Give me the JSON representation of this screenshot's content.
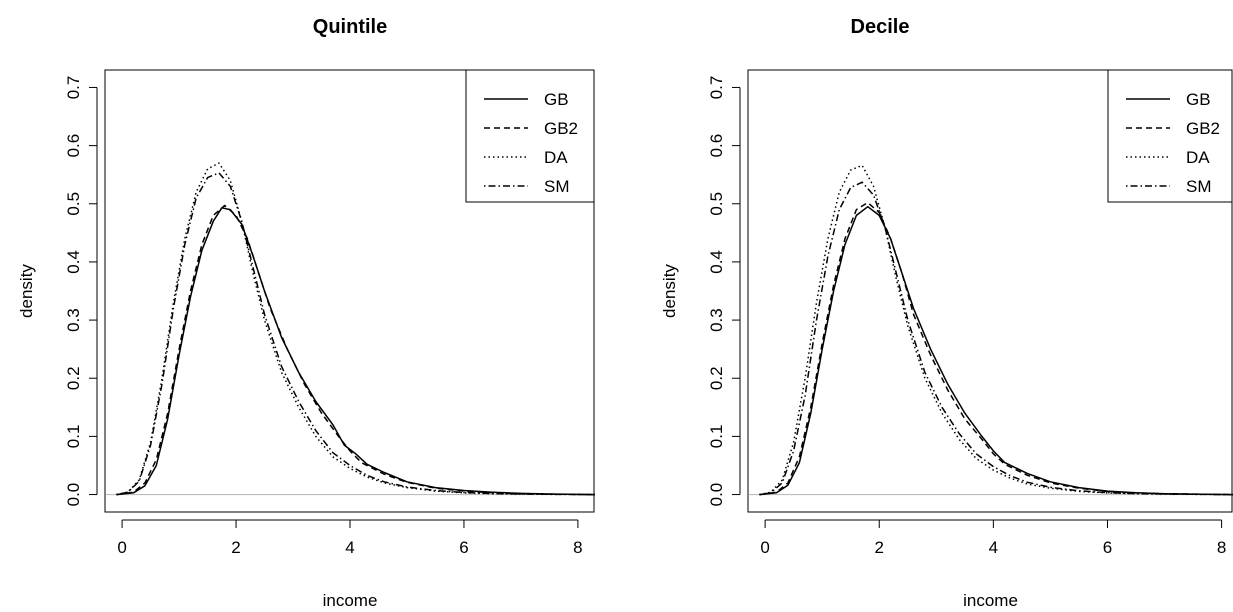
{
  "chart_data": [
    {
      "type": "line",
      "title": "Quintile",
      "xlabel": "income",
      "ylabel": "density",
      "xlim": [
        -0.3,
        8.3
      ],
      "ylim": [
        -0.03,
        0.73
      ],
      "xticks": [
        0,
        2,
        4,
        6,
        8
      ],
      "yticks": [
        0.0,
        0.1,
        0.2,
        0.3,
        0.4,
        0.5,
        0.6,
        0.7
      ],
      "ytick_labels": [
        "0.0",
        "0.1",
        "0.2",
        "0.3",
        "0.4",
        "0.5",
        "0.6",
        "0.7"
      ],
      "baseline": 0,
      "grid": false,
      "legend_position": "top-right",
      "series": [
        {
          "name": "GB",
          "dash": "solid",
          "x": [
            -0.1,
            0.2,
            0.4,
            0.6,
            0.8,
            1.0,
            1.2,
            1.4,
            1.6,
            1.75,
            1.9,
            2.1,
            2.3,
            2.5,
            2.8,
            3.1,
            3.4,
            3.7,
            3.9,
            4.1,
            4.3,
            4.6,
            5.0,
            5.5,
            6.0,
            6.5,
            7.0,
            7.5,
            8.3
          ],
          "y": [
            0.0,
            0.003,
            0.015,
            0.05,
            0.13,
            0.24,
            0.34,
            0.42,
            0.47,
            0.493,
            0.49,
            0.465,
            0.41,
            0.35,
            0.27,
            0.21,
            0.16,
            0.12,
            0.085,
            0.07,
            0.052,
            0.038,
            0.022,
            0.012,
            0.007,
            0.004,
            0.002,
            0.001,
            0.0
          ]
        },
        {
          "name": "GB2",
          "dash": "dashed",
          "x": [
            -0.1,
            0.2,
            0.4,
            0.6,
            0.8,
            1.0,
            1.2,
            1.4,
            1.6,
            1.8,
            2.0,
            2.2,
            2.4,
            2.6,
            2.9,
            3.2,
            3.5,
            3.8,
            4.0,
            4.2,
            4.6,
            5.0,
            5.5,
            6.0,
            6.5,
            7.0,
            7.5,
            8.3
          ],
          "y": [
            0.0,
            0.004,
            0.02,
            0.06,
            0.14,
            0.25,
            0.35,
            0.43,
            0.48,
            0.497,
            0.48,
            0.44,
            0.38,
            0.32,
            0.25,
            0.19,
            0.14,
            0.1,
            0.075,
            0.055,
            0.035,
            0.021,
            0.011,
            0.006,
            0.003,
            0.0015,
            0.0008,
            0.0
          ]
        },
        {
          "name": "DA",
          "dash": "dotted",
          "x": [
            -0.1,
            0.1,
            0.3,
            0.5,
            0.7,
            0.9,
            1.1,
            1.3,
            1.5,
            1.7,
            1.9,
            2.1,
            2.3,
            2.5,
            2.8,
            3.1,
            3.4,
            3.7,
            4.0,
            4.3,
            4.6,
            5.0,
            5.5,
            6.0,
            6.5,
            7.0,
            7.5,
            8.3
          ],
          "y": [
            0.0,
            0.004,
            0.025,
            0.09,
            0.2,
            0.33,
            0.44,
            0.52,
            0.56,
            0.57,
            0.54,
            0.47,
            0.38,
            0.3,
            0.21,
            0.15,
            0.1,
            0.065,
            0.045,
            0.03,
            0.02,
            0.012,
            0.006,
            0.003,
            0.0015,
            0.0008,
            0.0004,
            0.0
          ]
        },
        {
          "name": "SM",
          "dash": "dotdash",
          "x": [
            -0.1,
            0.1,
            0.3,
            0.5,
            0.7,
            0.9,
            1.1,
            1.3,
            1.5,
            1.7,
            1.9,
            2.1,
            2.3,
            2.5,
            2.8,
            3.1,
            3.4,
            3.7,
            4.0,
            4.3,
            4.6,
            5.0,
            5.5,
            6.0,
            6.5,
            7.0,
            7.5,
            8.3
          ],
          "y": [
            0.0,
            0.004,
            0.023,
            0.085,
            0.19,
            0.32,
            0.43,
            0.51,
            0.545,
            0.553,
            0.53,
            0.47,
            0.39,
            0.31,
            0.22,
            0.16,
            0.11,
            0.072,
            0.05,
            0.033,
            0.022,
            0.013,
            0.007,
            0.0035,
            0.0018,
            0.0009,
            0.0005,
            0.0
          ]
        }
      ]
    },
    {
      "type": "line",
      "title": "Decile",
      "xlabel": "income",
      "ylabel": "density",
      "xlim": [
        -0.3,
        8.2
      ],
      "ylim": [
        -0.03,
        0.73
      ],
      "xticks": [
        0,
        2,
        4,
        6,
        8
      ],
      "yticks": [
        0.0,
        0.1,
        0.2,
        0.3,
        0.4,
        0.5,
        0.6,
        0.7
      ],
      "ytick_labels": [
        "0.0",
        "0.1",
        "0.2",
        "0.3",
        "0.4",
        "0.5",
        "0.6",
        "0.7"
      ],
      "baseline": 0,
      "grid": false,
      "legend_position": "top-right",
      "series": [
        {
          "name": "GB",
          "dash": "solid",
          "x": [
            -0.1,
            0.2,
            0.4,
            0.6,
            0.8,
            1.0,
            1.2,
            1.4,
            1.6,
            1.8,
            2.0,
            2.2,
            2.4,
            2.6,
            2.9,
            3.2,
            3.5,
            3.8,
            4.0,
            4.2,
            4.6,
            5.0,
            5.5,
            6.0,
            6.5,
            7.0,
            7.5,
            8.2
          ],
          "y": [
            0.0,
            0.003,
            0.016,
            0.055,
            0.14,
            0.25,
            0.35,
            0.43,
            0.48,
            0.495,
            0.48,
            0.44,
            0.38,
            0.32,
            0.25,
            0.19,
            0.14,
            0.1,
            0.075,
            0.055,
            0.036,
            0.022,
            0.012,
            0.006,
            0.003,
            0.0015,
            0.0008,
            0.0
          ]
        },
        {
          "name": "GB2",
          "dash": "dashed",
          "x": [
            -0.1,
            0.2,
            0.4,
            0.6,
            0.8,
            1.0,
            1.2,
            1.4,
            1.6,
            1.8,
            2.0,
            2.2,
            2.4,
            2.6,
            2.9,
            3.2,
            3.5,
            3.8,
            4.0,
            4.2,
            4.6,
            5.0,
            5.5,
            6.0,
            6.5,
            7.0,
            7.5,
            8.2
          ],
          "y": [
            0.0,
            0.004,
            0.02,
            0.065,
            0.15,
            0.26,
            0.36,
            0.44,
            0.49,
            0.502,
            0.485,
            0.44,
            0.38,
            0.31,
            0.24,
            0.18,
            0.13,
            0.095,
            0.07,
            0.052,
            0.033,
            0.02,
            0.011,
            0.0055,
            0.0028,
            0.0014,
            0.0007,
            0.0
          ]
        },
        {
          "name": "DA",
          "dash": "dotted",
          "x": [
            -0.1,
            0.1,
            0.3,
            0.5,
            0.7,
            0.9,
            1.1,
            1.3,
            1.5,
            1.7,
            1.9,
            2.1,
            2.3,
            2.5,
            2.8,
            3.1,
            3.4,
            3.7,
            4.0,
            4.3,
            4.6,
            5.0,
            5.5,
            6.0,
            6.5,
            7.0,
            7.5,
            8.2
          ],
          "y": [
            0.0,
            0.004,
            0.025,
            0.09,
            0.2,
            0.33,
            0.44,
            0.52,
            0.558,
            0.566,
            0.53,
            0.46,
            0.37,
            0.29,
            0.2,
            0.14,
            0.095,
            0.062,
            0.042,
            0.028,
            0.018,
            0.011,
            0.0055,
            0.0028,
            0.0014,
            0.0007,
            0.0004,
            0.0
          ]
        },
        {
          "name": "SM",
          "dash": "dotdash",
          "x": [
            -0.1,
            0.1,
            0.3,
            0.5,
            0.7,
            0.9,
            1.1,
            1.3,
            1.5,
            1.7,
            1.9,
            2.1,
            2.3,
            2.5,
            2.8,
            3.1,
            3.4,
            3.7,
            4.0,
            4.3,
            4.6,
            5.0,
            5.5,
            6.0,
            6.5,
            7.0,
            7.5,
            8.2
          ],
          "y": [
            0.0,
            0.003,
            0.02,
            0.075,
            0.17,
            0.3,
            0.41,
            0.49,
            0.528,
            0.537,
            0.515,
            0.46,
            0.38,
            0.3,
            0.21,
            0.15,
            0.105,
            0.07,
            0.048,
            0.032,
            0.021,
            0.0125,
            0.0065,
            0.0033,
            0.0017,
            0.0009,
            0.0005,
            0.0
          ]
        }
      ]
    }
  ]
}
